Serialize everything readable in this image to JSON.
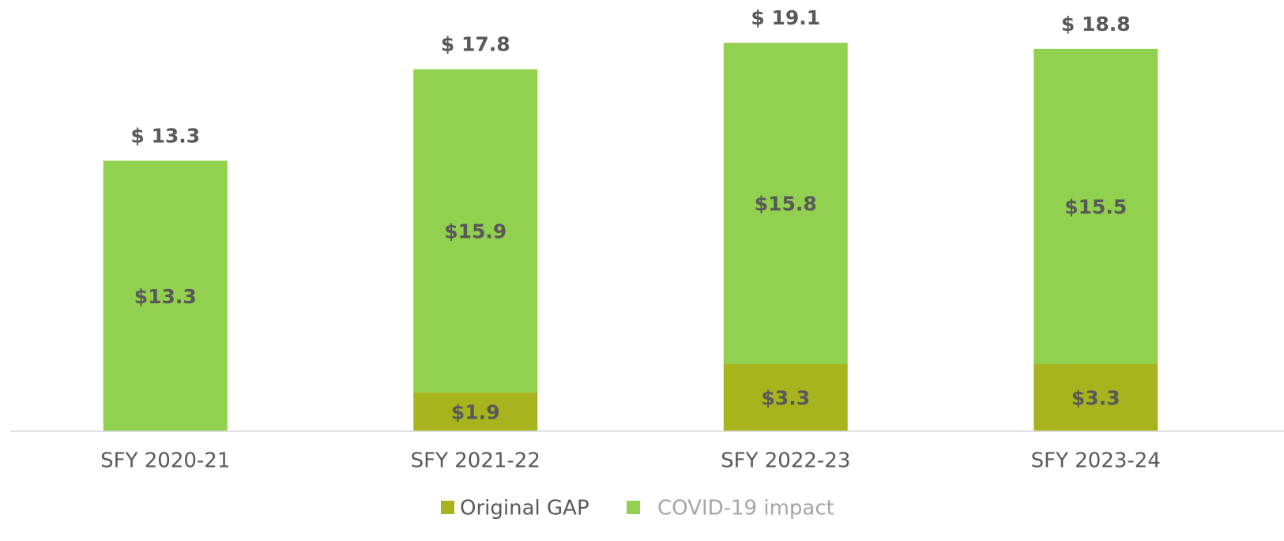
{
  "chart_data": {
    "type": "stacked_bar",
    "categories": [
      "SFY 2020-21",
      "SFY 2021-22",
      "SFY 2022-23",
      "SFY 2023-24"
    ],
    "series": [
      {
        "name": "Original GAP",
        "color": "#a8b41e",
        "values": [
          null,
          1.9,
          3.3,
          3.3
        ],
        "value_labels": [
          null,
          "$1.9",
          "$3.3",
          "$3.3"
        ]
      },
      {
        "name": "COVID-19 impact",
        "color": "#92d050",
        "values": [
          13.3,
          15.9,
          15.8,
          15.5
        ],
        "value_labels": [
          "$13.3",
          "$15.9",
          "$15.8",
          "$15.5"
        ]
      }
    ],
    "totals": [
      13.3,
      17.8,
      19.1,
      18.8
    ],
    "total_labels": [
      "$ 13.3",
      "$ 17.8",
      "$ 19.1",
      "$ 18.8"
    ],
    "ylim": [
      0,
      20
    ],
    "legend": "bottom"
  }
}
